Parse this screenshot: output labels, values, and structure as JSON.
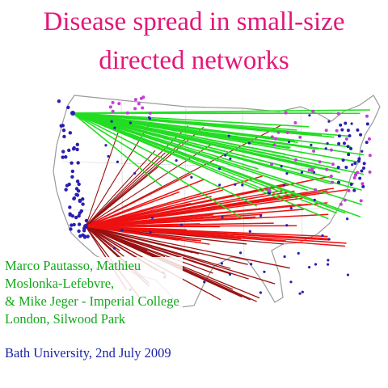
{
  "slide": {
    "title_lines": [
      "Disease spread in small-size",
      "directed networks"
    ],
    "authors_lines": [
      "Marco Pautasso, Mathieu",
      "Moslonka-Lefebvre,",
      "& Mike Jeger - Imperial College",
      "London, Silwood Park"
    ],
    "venue": "Bath University, 2nd July 2009"
  },
  "colors": {
    "title": "#e4167a",
    "authors": "#13a81a",
    "venue": "#1a22a8",
    "green_links": "#22dd22",
    "red_links": "#ee1111",
    "dark_red_links": "#9a1010",
    "nodes_blue": "#2a1fb0",
    "nodes_magenta": "#c23fd6"
  },
  "map": {
    "icon": "usa-map-icon",
    "green_hub": "west-coast-north-hub",
    "red_hub": "west-coast-south-hub"
  }
}
